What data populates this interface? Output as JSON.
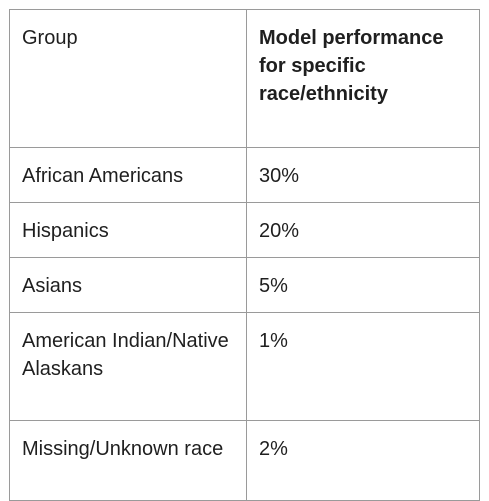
{
  "table": {
    "headers": [
      "Group",
      "Model performance for specific race/ethnicity"
    ],
    "rows": [
      [
        "African Americans",
        "30%"
      ],
      [
        "Hispanics",
        "20%"
      ],
      [
        "Asians",
        "5%"
      ],
      [
        "American Indian/Native Alaskans",
        "1%"
      ],
      [
        "Missing/Unknown race",
        "2%"
      ]
    ]
  }
}
